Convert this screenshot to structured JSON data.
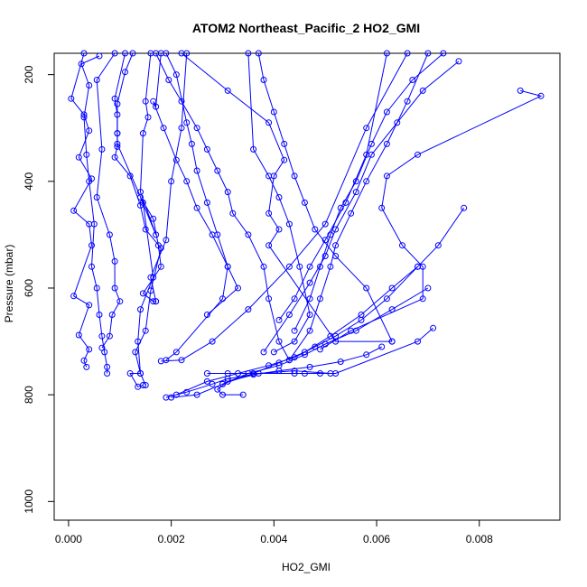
{
  "chart_data": {
    "type": "line",
    "title": "ATOM2 Northeast_Pacific_2 HO2_GMI",
    "xlabel": "HO2_GMI",
    "ylabel": "Pressure (mbar)",
    "xlim": [
      -0.00028,
      0.00957
    ],
    "ylim": [
      1035,
      160
    ],
    "y_reversed": true,
    "x_ticks": [
      0,
      0.002,
      0.004,
      0.006,
      0.008
    ],
    "x_tick_labels": [
      "0.000",
      "0.002",
      "0.004",
      "0.006",
      "0.008"
    ],
    "y_ticks": [
      200,
      400,
      600,
      800,
      1000
    ],
    "y_tick_labels": [
      "200",
      "400",
      "600",
      "800",
      "1000"
    ],
    "series_color": "#0000ff",
    "marker": "open-circle",
    "grid": false,
    "series": [
      {
        "x": [
          0.0003,
          5e-05,
          0.0003,
          0.0004,
          0.0002,
          0.00045,
          0.0001,
          0.0004,
          0.00045,
          0.0001,
          0.0004,
          0.0002,
          0.0004,
          0.0003,
          0.00035
        ],
        "y": [
          160,
          245,
          275,
          305,
          355,
          395,
          455,
          480,
          520,
          615,
          632,
          688,
          715,
          736,
          748
        ]
      },
      {
        "x": [
          0.0006,
          0.00025,
          0.0004,
          0.0003,
          0.00035,
          0.0004,
          0.0005,
          0.00045,
          0.00055,
          0.0006,
          0.00065,
          0.0007,
          0.00075,
          0.00075
        ],
        "y": [
          165,
          180,
          220,
          280,
          350,
          400,
          480,
          560,
          600,
          650,
          690,
          720,
          748,
          760
        ]
      },
      {
        "x": [
          0.0009,
          0.00055,
          0.00065,
          0.00055,
          0.0008,
          0.0009,
          0.0009,
          0.001,
          0.00085,
          0.0008,
          0.00065
        ],
        "y": [
          160,
          210,
          340,
          430,
          500,
          550,
          600,
          625,
          650,
          690,
          712
        ]
      },
      {
        "x": [
          0.0011,
          0.0009,
          0.00095,
          0.00095,
          0.00095,
          0.0009,
          0.0012,
          0.0014,
          0.0015,
          0.0018,
          0.0016,
          0.0015,
          0.0013,
          0.0014,
          0.0015
        ],
        "y": [
          160,
          245,
          275,
          310,
          335,
          355,
          390,
          445,
          490,
          525,
          605,
          680,
          720,
          760,
          782
        ]
      },
      {
        "x": [
          0.00125,
          0.0011,
          0.00095,
          0.00095,
          0.00095,
          0.00145,
          0.00165,
          0.0014,
          0.00135,
          0.0014,
          0.0012,
          0.00135,
          0.00145
        ],
        "y": [
          160,
          195,
          255,
          310,
          330,
          440,
          580,
          640,
          700,
          760,
          760,
          785,
          782
        ]
      },
      {
        "x": [
          0.0016,
          0.0015,
          0.00155,
          0.00145,
          0.0014,
          0.0017,
          0.0014,
          0.00165,
          0.00175,
          0.0018,
          0.00145,
          0.00165,
          0.0017
        ],
        "y": [
          160,
          250,
          280,
          310,
          420,
          500,
          430,
          470,
          520,
          560,
          610,
          625,
          625
        ]
      },
      {
        "x": [
          0.0018,
          0.0017,
          0.00165,
          0.00185,
          0.0021,
          0.0023,
          0.0025,
          0.0028,
          0.0031,
          0.003,
          0.0021,
          0.0019
        ],
        "y": [
          160,
          260,
          250,
          300,
          360,
          400,
          450,
          500,
          560,
          620,
          720,
          735
        ]
      },
      {
        "x": [
          0.0017,
          0.00195,
          0.0022,
          0.0025,
          0.0027,
          0.0029,
          0.0031,
          0.0032,
          0.0035,
          0.0038,
          0.0039,
          0.0041,
          0.0043
        ],
        "y": [
          160,
          210,
          250,
          300,
          340,
          380,
          420,
          460,
          500,
          560,
          620,
          700,
          735
        ]
      },
      {
        "x": [
          0.0019,
          0.0021,
          0.0023,
          0.0024,
          0.0025,
          0.0027,
          0.0029,
          0.0031,
          0.0033,
          0.0027
        ],
        "y": [
          160,
          200,
          290,
          330,
          380,
          440,
          500,
          560,
          600,
          650
        ]
      },
      {
        "x": [
          0.0023,
          0.0022,
          0.002,
          0.0019,
          0.0016,
          0.0017
        ],
        "y": [
          160,
          300,
          400,
          510,
          580,
          625
        ]
      },
      {
        "x": [
          0.0022,
          0.0031,
          0.0039,
          0.0042,
          0.004,
          0.0039,
          0.0041,
          0.0039,
          0.0052,
          0.0063
        ],
        "y": [
          160,
          230,
          290,
          360,
          390,
          460,
          490,
          520,
          700,
          700
        ]
      },
      {
        "x": [
          0.0035,
          0.0036,
          0.0039,
          0.0041,
          0.0043,
          0.0045,
          0.0047,
          0.0044,
          0.004
        ],
        "y": [
          160,
          340,
          390,
          430,
          480,
          560,
          650,
          700,
          720
        ]
      },
      {
        "x": [
          0.0037,
          0.0038,
          0.004,
          0.0042,
          0.0044,
          0.0046,
          0.0048,
          0.0052,
          0.0058,
          0.0063
        ],
        "y": [
          160,
          210,
          270,
          330,
          390,
          440,
          490,
          540,
          600,
          700
        ]
      },
      {
        "x": [
          0.007,
          0.0066,
          0.0062,
          0.0058,
          0.0055,
          0.0052,
          0.0051,
          0.0049,
          0.0047,
          0.0043
        ],
        "y": [
          160,
          250,
          330,
          400,
          460,
          520,
          560,
          620,
          680,
          735
        ]
      },
      {
        "x": [
          0.0073,
          0.0067,
          0.0062,
          0.0059,
          0.0056,
          0.0053,
          0.0051,
          0.0049,
          0.0047,
          0.0044
        ],
        "y": [
          160,
          210,
          270,
          330,
          400,
          450,
          500,
          560,
          620,
          680
        ]
      },
      {
        "x": [
          0.0076,
          0.0069,
          0.0064,
          0.0059,
          0.0056,
          0.0052,
          0.005,
          0.0047,
          0.0043,
          0.0038
        ],
        "y": [
          175,
          230,
          290,
          350,
          420,
          490,
          540,
          590,
          650,
          720
        ]
      },
      {
        "x": [
          0.0088,
          0.0092,
          0.0068,
          0.0062,
          0.0061,
          0.0065,
          0.0069,
          0.0069,
          0.0055,
          0.0049
        ],
        "y": [
          230,
          240,
          350,
          390,
          450,
          520,
          560,
          620,
          680,
          715
        ]
      },
      {
        "x": [
          0.0077,
          0.0072,
          0.0068,
          0.0063,
          0.0057,
          0.0051,
          0.0046,
          0.0041,
          0.0036,
          0.003
        ],
        "y": [
          450,
          520,
          560,
          600,
          650,
          690,
          720,
          740,
          760,
          780
        ]
      },
      {
        "x": [
          0.0068,
          0.0062,
          0.0057,
          0.0052,
          0.0048,
          0.0044,
          0.0039,
          0.0033,
          0.0027,
          0.0021
        ],
        "y": [
          560,
          620,
          660,
          690,
          710,
          730,
          745,
          760,
          775,
          800
        ]
      },
      {
        "x": [
          0.007,
          0.0063,
          0.0056,
          0.005,
          0.0046,
          0.0041,
          0.0035,
          0.003,
          0.0025,
          0.002
        ],
        "y": [
          600,
          640,
          680,
          705,
          725,
          745,
          760,
          780,
          800,
          805
        ]
      },
      {
        "x": [
          0.0071,
          0.0068,
          0.0052,
          0.0049,
          0.0046,
          0.0044,
          0.0031,
          0.0027
        ],
        "y": [
          675,
          700,
          760,
          760,
          760,
          760,
          760,
          760
        ]
      },
      {
        "x": [
          0.0061,
          0.0058,
          0.0053,
          0.0047,
          0.0041,
          0.0036,
          0.0031,
          0.0028,
          0.0023,
          0.0019
        ],
        "y": [
          710,
          725,
          738,
          748,
          755,
          762,
          770,
          780,
          795,
          805
        ]
      },
      {
        "x": [
          0.0051,
          0.0044,
          0.0037,
          0.0031,
          0.0029,
          0.003,
          0.0034
        ],
        "y": [
          760,
          755,
          760,
          775,
          790,
          800,
          800
        ]
      },
      {
        "x": [
          0.0066,
          0.0058,
          0.005,
          0.0043,
          0.0035,
          0.0028,
          0.0022,
          0.0018
        ],
        "y": [
          160,
          300,
          480,
          560,
          640,
          700,
          735,
          737
        ]
      },
      {
        "x": [
          0.0062,
          0.0058,
          0.0054,
          0.005,
          0.0047,
          0.0044,
          0.0041
        ],
        "y": [
          160,
          350,
          440,
          510,
          560,
          620,
          660
        ]
      }
    ]
  }
}
